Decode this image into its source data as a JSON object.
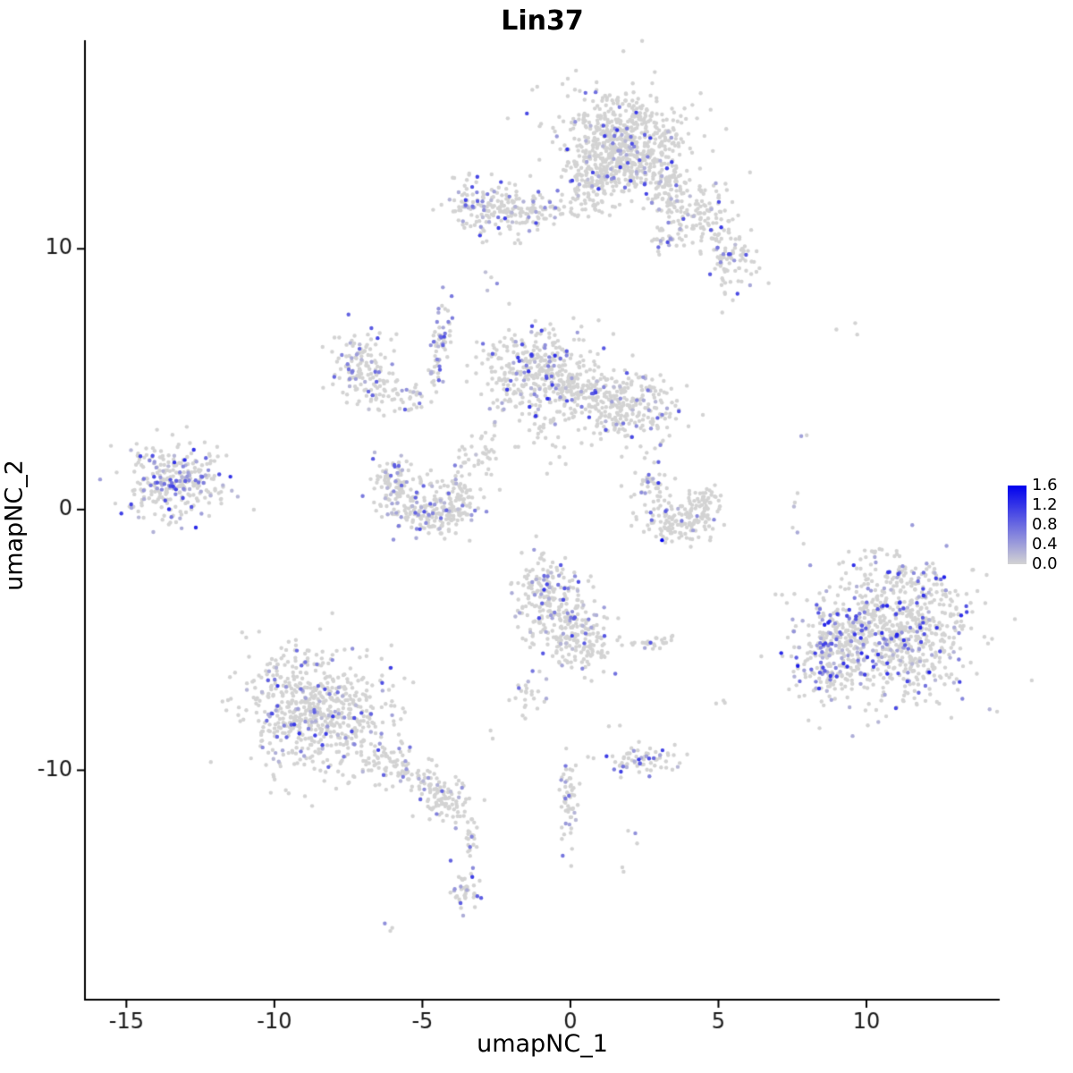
{
  "chart_data": {
    "type": "scatter",
    "title": "Lin37",
    "xlabel": "umapNC_1",
    "ylabel": "umapNC_2",
    "xlim": [
      -16.4,
      14.5
    ],
    "ylim": [
      -18.8,
      18.0
    ],
    "xticks": [
      -15,
      -10,
      -5,
      0,
      5,
      10
    ],
    "yticks": [
      -10,
      0,
      10
    ],
    "grid": false,
    "legend_position": "right",
    "colorbar": {
      "vmax": 1.6,
      "ticks": [
        "1.6",
        "1.2",
        "0.8",
        "0.4",
        "0.0"
      ],
      "tick_values": [
        1.6,
        1.2,
        0.8,
        0.4,
        0.0
      ],
      "color_high": "#0000EE",
      "color_low": "#D3D3D3"
    },
    "clusters": [
      {
        "cx": 1.8,
        "cy": 14.1,
        "sx": 1.05,
        "sy": 1.0,
        "n": 650,
        "f": 0.1,
        "vm": 1.3
      },
      {
        "cx": 0.9,
        "cy": 12.6,
        "sx": 0.5,
        "sy": 0.5,
        "n": 120,
        "f": 0.08,
        "vm": 1.0
      },
      {
        "cx": 3.3,
        "cy": 12.5,
        "sx": 0.5,
        "sy": 0.55,
        "n": 90,
        "f": 0.12,
        "vm": 1.2
      },
      {
        "cx": 4.4,
        "cy": 11.3,
        "sx": 0.55,
        "sy": 0.6,
        "n": 110,
        "f": 0.15,
        "vm": 1.2
      },
      {
        "cx": 5.4,
        "cy": 9.7,
        "sx": 0.5,
        "sy": 0.6,
        "n": 90,
        "f": 0.15,
        "vm": 1.2
      },
      {
        "cx": 3.2,
        "cy": 10.3,
        "sx": 0.3,
        "sy": 0.35,
        "n": 30,
        "f": 0.1,
        "vm": 0.8
      },
      {
        "cx": -2.5,
        "cy": 11.6,
        "sx": 0.75,
        "sy": 0.55,
        "n": 170,
        "f": 0.18,
        "vm": 1.2
      },
      {
        "cx": -0.7,
        "cy": 11.5,
        "sx": 0.9,
        "sy": 0.25,
        "n": 70,
        "f": 0.08,
        "vm": 0.8
      },
      {
        "cx": -2.8,
        "cy": 8.9,
        "sx": 0.15,
        "sy": 0.25,
        "n": 4,
        "f": 0.5,
        "vm": 0.9
      },
      {
        "cx": -4.4,
        "cy": 6.3,
        "sx": 0.16,
        "sy": 0.85,
        "rot": -8,
        "n": 70,
        "f": 0.25,
        "vm": 1.1
      },
      {
        "cx": -7.0,
        "cy": 5.5,
        "sx": 0.6,
        "sy": 0.75,
        "rot": 20,
        "n": 140,
        "f": 0.22,
        "vm": 1.1
      },
      {
        "cx": -5.7,
        "cy": 4.3,
        "sx": 0.5,
        "sy": 0.35,
        "n": 40,
        "f": 0.15,
        "vm": 0.9
      },
      {
        "cx": -1.1,
        "cy": 5.3,
        "sx": 0.95,
        "sy": 0.85,
        "n": 380,
        "f": 0.15,
        "vm": 1.3
      },
      {
        "cx": 1.9,
        "cy": 4.0,
        "sx": 0.95,
        "sy": 0.7,
        "n": 260,
        "f": 0.12,
        "vm": 1.1
      },
      {
        "cx": 0.4,
        "cy": 4.5,
        "sx": 0.5,
        "sy": 0.4,
        "n": 60,
        "f": 0.1,
        "vm": 0.9
      },
      {
        "cx": -0.8,
        "cy": 2.6,
        "sx": 0.5,
        "sy": 0.6,
        "n": 25,
        "f": 0.08,
        "vm": 0.8
      },
      {
        "cx": -5.9,
        "cy": 0.9,
        "sx": 0.45,
        "sy": 0.55,
        "n": 110,
        "f": 0.18,
        "vm": 1.0
      },
      {
        "cx": -4.8,
        "cy": -0.2,
        "sx": 0.6,
        "sy": 0.4,
        "n": 130,
        "f": 0.18,
        "vm": 1.0
      },
      {
        "cx": -3.8,
        "cy": 0.5,
        "sx": 0.4,
        "sy": 0.5,
        "n": 90,
        "f": 0.18,
        "vm": 1.0
      },
      {
        "cx": -3.0,
        "cy": 2.2,
        "sx": 0.5,
        "sy": 0.6,
        "n": 40,
        "f": 0.1,
        "vm": 0.8
      },
      {
        "cx": -13.4,
        "cy": 1.1,
        "sx": 0.8,
        "sy": 0.75,
        "n": 300,
        "f": 0.25,
        "vm": 1.3
      },
      {
        "cx": -12.0,
        "cy": 1.5,
        "sx": 0.3,
        "sy": 0.7,
        "n": 8,
        "f": 0.1,
        "vm": 0.8
      },
      {
        "cx": 2.7,
        "cy": 0.9,
        "sx": 0.3,
        "sy": 0.35,
        "n": 40,
        "f": 0.2,
        "vm": 1.3
      },
      {
        "cx": 3.7,
        "cy": -0.5,
        "sx": 0.65,
        "sy": 0.35,
        "n": 130,
        "f": 0.06,
        "vm": 0.9
      },
      {
        "cx": 4.5,
        "cy": 0.3,
        "sx": 0.3,
        "sy": 0.4,
        "n": 50,
        "f": 0.06,
        "vm": 0.9
      },
      {
        "cx": 3.05,
        "cy": -1.15,
        "sx": 0.05,
        "sy": 0.05,
        "n": 1,
        "f": 1.0,
        "vm": 1.6,
        "v": 1.6
      },
      {
        "cx": 3.1,
        "cy": 2.5,
        "sx": 0.12,
        "sy": 0.45,
        "n": 5,
        "f": 0.3,
        "vm": 1.0
      },
      {
        "cx": 7.65,
        "cy": 0.3,
        "sx": 0.1,
        "sy": 0.7,
        "n": 6,
        "f": 0.3,
        "vm": 1.0
      },
      {
        "cx": 9.3,
        "cy": 6.9,
        "sx": 0.25,
        "sy": 0.2,
        "n": 3,
        "f": 0.0,
        "vm": 0.0
      },
      {
        "cx": 7.7,
        "cy": 2.9,
        "sx": 0.1,
        "sy": 0.1,
        "n": 2,
        "f": 0.5,
        "vm": 1.0
      },
      {
        "cx": -0.9,
        "cy": -3.0,
        "sx": 0.55,
        "sy": 0.6,
        "n": 130,
        "f": 0.2,
        "vm": 1.2
      },
      {
        "cx": -0.2,
        "cy": -4.2,
        "sx": 0.6,
        "sy": 0.7,
        "n": 160,
        "f": 0.15,
        "vm": 1.1
      },
      {
        "cx": 0.5,
        "cy": -5.3,
        "sx": 0.45,
        "sy": 0.5,
        "n": 80,
        "f": 0.12,
        "vm": 1.0
      },
      {
        "cx": -1.4,
        "cy": -7.0,
        "sx": 0.3,
        "sy": 0.4,
        "n": 25,
        "f": 0.25,
        "vm": 1.1
      },
      {
        "cx": 2.8,
        "cy": -5.1,
        "sx": 0.45,
        "sy": 0.12,
        "n": 25,
        "f": 0.15,
        "vm": 1.0
      },
      {
        "cx": 10.7,
        "cy": -4.9,
        "sx": 1.35,
        "sy": 1.3,
        "n": 800,
        "f": 0.18,
        "vm": 1.4
      },
      {
        "cx": 8.7,
        "cy": -5.6,
        "sx": 0.55,
        "sy": 0.8,
        "n": 160,
        "f": 0.35,
        "vm": 1.4
      },
      {
        "cx": 11.4,
        "cy": -2.7,
        "sx": 0.8,
        "sy": 0.4,
        "n": 70,
        "f": 0.2,
        "vm": 1.2
      },
      {
        "cx": 10.3,
        "cy": -1.8,
        "sx": 0.5,
        "sy": 0.3,
        "n": 8,
        "f": 0.3,
        "vm": 1.2
      },
      {
        "cx": -8.6,
        "cy": -7.7,
        "sx": 1.25,
        "sy": 1.2,
        "n": 650,
        "f": 0.15,
        "vm": 1.2
      },
      {
        "cx": -5.4,
        "cy": -10.1,
        "sx": 0.9,
        "sy": 0.35,
        "rot": -28,
        "n": 130,
        "f": 0.15,
        "vm": 1.1
      },
      {
        "cx": -4.2,
        "cy": -11.3,
        "sx": 0.35,
        "sy": 0.4,
        "n": 50,
        "f": 0.12,
        "vm": 1.0
      },
      {
        "cx": -0.05,
        "cy": -11.1,
        "sx": 0.16,
        "sy": 0.8,
        "n": 55,
        "f": 0.15,
        "vm": 1.1
      },
      {
        "cx": 2.4,
        "cy": -9.6,
        "sx": 0.7,
        "sy": 0.3,
        "n": 70,
        "f": 0.25,
        "vm": 1.2
      },
      {
        "cx": -3.4,
        "cy": -12.7,
        "sx": 0.12,
        "sy": 0.55,
        "n": 22,
        "f": 0.1,
        "vm": 0.9
      },
      {
        "cx": -3.5,
        "cy": -14.6,
        "sx": 0.25,
        "sy": 0.45,
        "n": 40,
        "f": 0.2,
        "vm": 1.2
      },
      {
        "cx": -6.1,
        "cy": -16.1,
        "sx": 0.12,
        "sy": 0.12,
        "n": 3,
        "f": 0.4,
        "vm": 1.0
      },
      {
        "cx": 5.1,
        "cy": -7.4,
        "sx": 0.1,
        "sy": 0.15,
        "n": 3,
        "f": 0.4,
        "vm": 1.2
      },
      {
        "cx": 2.1,
        "cy": -12.4,
        "sx": 0.15,
        "sy": 0.2,
        "n": 3,
        "f": 0.3,
        "vm": 0.9
      },
      {
        "cx": 1.8,
        "cy": -13.8,
        "sx": 0.1,
        "sy": 0.1,
        "n": 2,
        "f": 0.0,
        "vm": 0.0
      },
      {
        "cx": -2.5,
        "cy": -8.6,
        "sx": 0.15,
        "sy": 0.15,
        "n": 2,
        "f": 0.0,
        "vm": 0.0
      },
      {
        "cx": 1.5,
        "cy": -8.2,
        "sx": 0.15,
        "sy": 0.15,
        "n": 2,
        "f": 0.3,
        "vm": 0.8
      }
    ]
  }
}
